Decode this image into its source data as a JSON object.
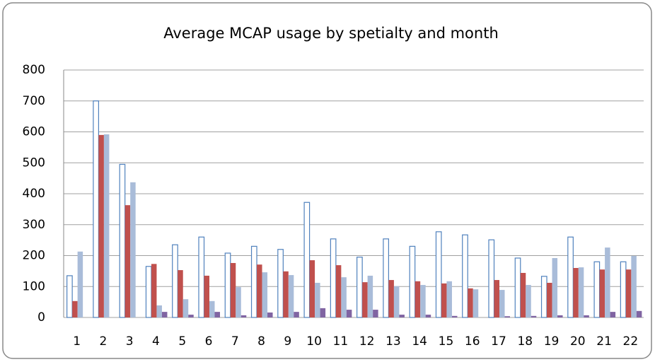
{
  "chart_data": {
    "type": "bar",
    "title": "Average MCAP usage by spetialty and month",
    "categories": [
      "1",
      "2",
      "3",
      "4",
      "5",
      "6",
      "7",
      "8",
      "9",
      "10",
      "11",
      "12",
      "13",
      "14",
      "15",
      "16",
      "17",
      "18",
      "19",
      "20",
      "21",
      "22"
    ],
    "series": [
      {
        "color": "#4f81bd",
        "style": "outline",
        "values": [
          135,
          700,
          495,
          165,
          235,
          260,
          208,
          230,
          220,
          372,
          254,
          195,
          254,
          230,
          277,
          267,
          251,
          192,
          133,
          260,
          180,
          180
        ]
      },
      {
        "color": "#c0504d",
        "values": [
          53,
          590,
          363,
          173,
          153,
          135,
          176,
          171,
          149,
          185,
          169,
          114,
          121,
          117,
          110,
          94,
          121,
          144,
          112,
          160,
          155,
          155
        ]
      },
      {
        "color": "#a9bcd9",
        "values": [
          213,
          592,
          437,
          39,
          59,
          53,
          98,
          146,
          137,
          112,
          130,
          135,
          101,
          105,
          117,
          91,
          89,
          105,
          192,
          162,
          226,
          199
        ]
      },
      {
        "color": "#8064a2",
        "values": [
          0,
          0,
          0,
          18,
          9,
          18,
          7,
          16,
          18,
          30,
          25,
          25,
          9,
          9,
          5,
          0,
          4,
          5,
          7,
          7,
          18,
          21
        ]
      }
    ],
    "ylim": [
      0,
      800
    ],
    "yticks": [
      0,
      100,
      200,
      300,
      400,
      500,
      600,
      700,
      800
    ],
    "grid": true
  }
}
